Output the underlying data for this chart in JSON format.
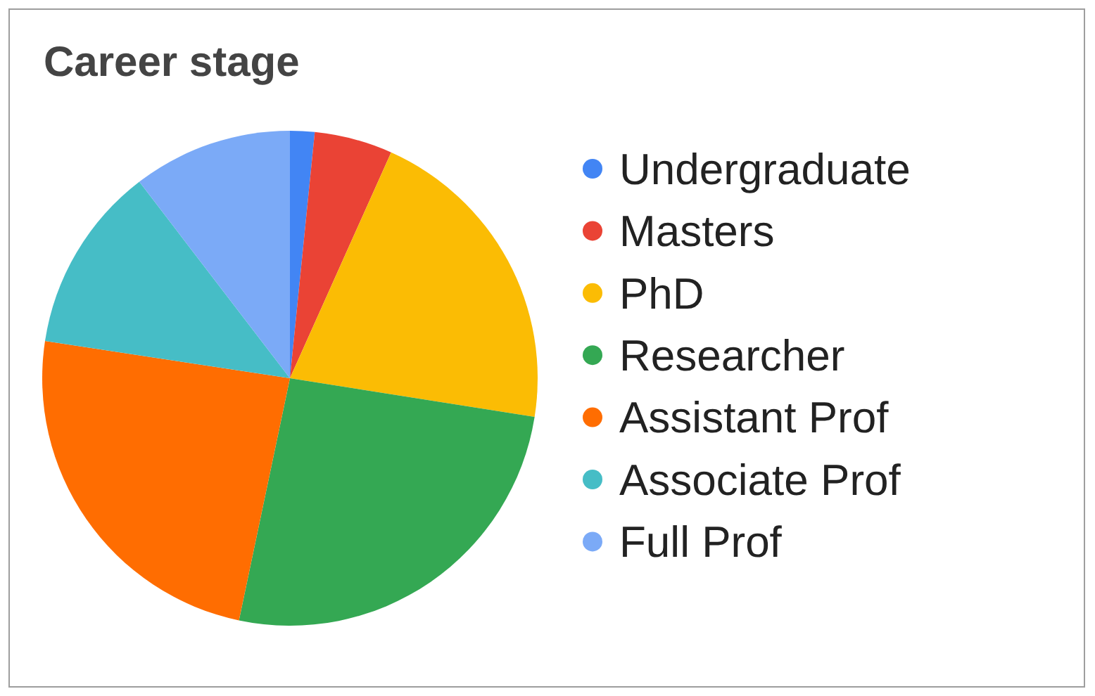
{
  "chart_data": {
    "type": "pie",
    "title": "Career stage",
    "categories": [
      "Undergraduate",
      "Masters",
      "PhD",
      "Researcher",
      "Assistant Prof",
      "Associate Prof",
      "Full Prof"
    ],
    "values": [
      1.6,
      5.1,
      20.8,
      25.8,
      24.1,
      12.2,
      10.4
    ],
    "colors": [
      "#4285f4",
      "#ea4335",
      "#fbbc04",
      "#34a853",
      "#ff6d01",
      "#46bdc6",
      "#7baaf7"
    ],
    "legend": "right"
  }
}
